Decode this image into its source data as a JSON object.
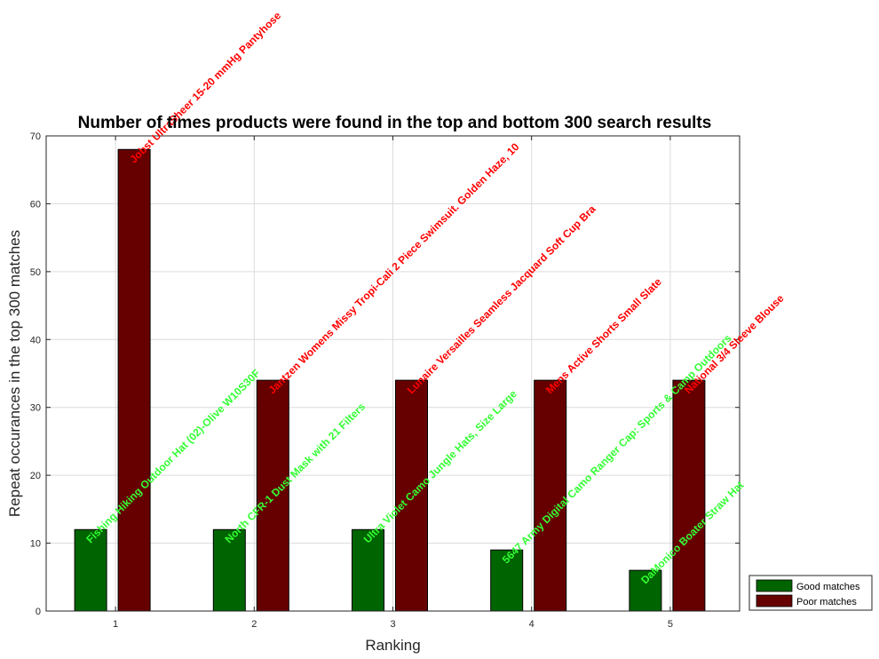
{
  "chart_data": {
    "type": "bar",
    "title": "Number of times products were found in the top and bottom 300 search results",
    "xlabel": "Ranking",
    "ylabel": "Repeat occurances in the top 300 matches",
    "categories": [
      "1",
      "2",
      "3",
      "4",
      "5"
    ],
    "ylim": [
      0,
      70
    ],
    "yticks": [
      0,
      10,
      20,
      30,
      40,
      50,
      60,
      70
    ],
    "grid": true,
    "legend_position": "bottom-right outside",
    "series": [
      {
        "name": "Good matches",
        "color": "#006400",
        "label_color": "#33ff33",
        "values": [
          12,
          12,
          12,
          9,
          6
        ],
        "labels": [
          "Fishing Hiking Outdoor Hat (02)-Olive W10S30F",
          "North CFR-1 Dust Mask with 21 Filters",
          "Ultra Violet Camo Jungle Hats, Size Large",
          "5647 Army Digital Camo Ranger Cap: Sports & Camp Outdoors",
          "DaMonico Boater Straw Hat"
        ]
      },
      {
        "name": "Poor matches",
        "color": "#660000",
        "label_color": "#ff0000",
        "values": [
          68,
          34,
          34,
          34,
          34
        ],
        "labels": [
          "Jobst UltraSheer 15-20 mmHg Pantyhose",
          "Jantzen Womens Missy Tropi-Cali 2 Piece Swimsuit. Golden Haze, 10",
          "Lunaire Versailles Seamless Jacquard Soft Cup Bra",
          "Mens Active Shorts Small Slate",
          "National 3/4 Sleeve Blouse"
        ]
      }
    ]
  }
}
